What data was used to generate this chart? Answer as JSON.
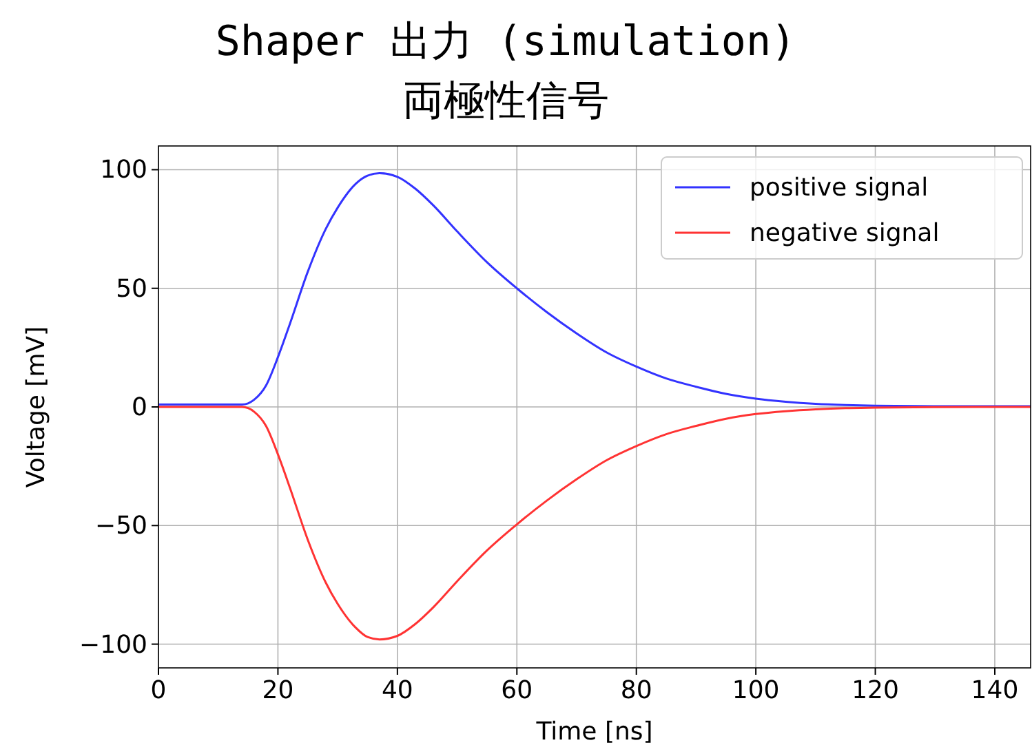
{
  "chart_data": {
    "type": "line",
    "title": "Shaper 出力 (simulation)",
    "subtitle": "両極性信号",
    "xlabel": "Time [ns]",
    "ylabel": "Voltage [mV]",
    "x": [
      0,
      14,
      15,
      16,
      18,
      20,
      22,
      25,
      28,
      30,
      33,
      35,
      37,
      40,
      43,
      46,
      50,
      55,
      60,
      65,
      70,
      75,
      80,
      85,
      90,
      95,
      100,
      105,
      110,
      115,
      120,
      130,
      146
    ],
    "series": [
      {
        "name": "positive signal",
        "color": "#3333ff",
        "values": [
          1,
          1,
          1.5,
          3,
          9,
          21,
          35,
          57,
          75,
          84,
          94,
          97.5,
          98.5,
          97,
          92,
          85,
          74,
          61,
          50,
          40,
          31,
          23,
          17,
          12,
          8.5,
          5.5,
          3.5,
          2.2,
          1.3,
          0.8,
          0.5,
          0.3,
          0.3
        ]
      },
      {
        "name": "negative signal",
        "color": "#ff3333",
        "values": [
          0,
          0,
          -0.5,
          -2,
          -8,
          -20,
          -34,
          -56,
          -74,
          -83,
          -93,
          -97,
          -98,
          -96.5,
          -91.5,
          -84.5,
          -73.5,
          -60.5,
          -49.5,
          -39.5,
          -30.5,
          -22.5,
          -16.5,
          -11.5,
          -8,
          -5,
          -3,
          -1.8,
          -1,
          -0.5,
          -0.3,
          -0.1,
          0
        ]
      }
    ],
    "xlim": [
      0,
      146
    ],
    "xticks": [
      0,
      20,
      40,
      60,
      80,
      100,
      120,
      140
    ],
    "ylim": [
      -110,
      110
    ],
    "yticks": [
      -100,
      -50,
      0,
      50,
      100
    ],
    "grid": true,
    "legend": "top right",
    "marker": "none",
    "line_style": "solid"
  }
}
